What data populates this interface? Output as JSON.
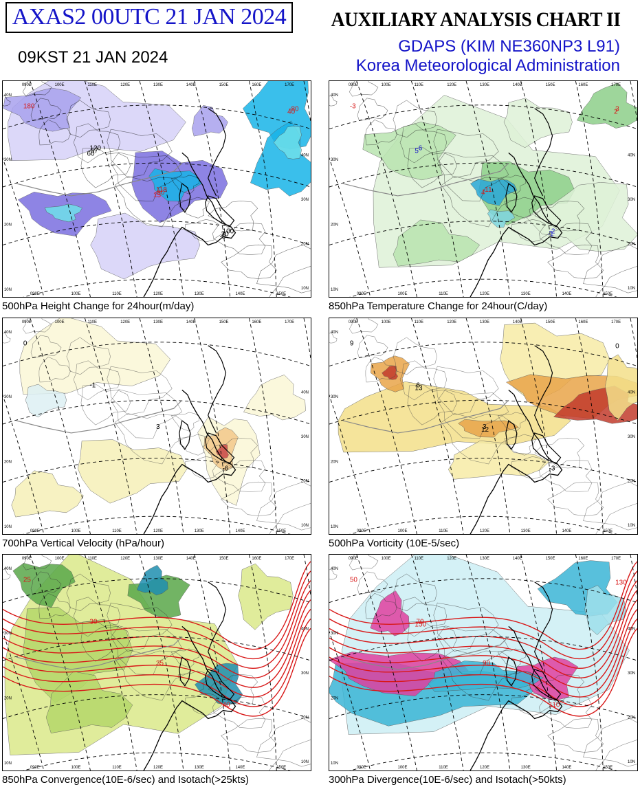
{
  "header": {
    "run_label": "AXAS2  00UTC 21 JAN 2024",
    "local_time": "09KST 21 JAN 2024",
    "chart_title": "AUXILIARY ANALYSIS CHART II",
    "model": "GDAPS (KIM NE360NP3 L91)",
    "agency": "Korea Meteorological Administration"
  },
  "grid_labels": {
    "lon_top": [
      "090E",
      "100E",
      "110E",
      "120E",
      "130E",
      "140E",
      "150E",
      "160E",
      "170E"
    ],
    "lon_bottom": [
      "090E",
      "100E",
      "110E",
      "120E",
      "130E",
      "140E",
      "150E"
    ],
    "lat_left": [
      "40N",
      "30N",
      "20N",
      "10N"
    ],
    "lat_right": [
      "40N",
      "30N",
      "20N",
      "10N"
    ]
  },
  "panels": [
    {
      "id": "p1",
      "caption": "500hPa Height Change for 24hour(m/day)",
      "palette": [
        "#7b6fe0",
        "#a9a2ee",
        "#d6d2f8",
        "#18b4e8",
        "#6fe0ea"
      ],
      "labels": [
        "180",
        "120",
        "118",
        "100",
        "-80",
        "-57",
        "-30",
        "20",
        "40",
        "60",
        "15",
        "-9"
      ]
    },
    {
      "id": "p2",
      "caption": "850hPa Temperature Change for 24hour(C/day)",
      "palette": [
        "#8ed08a",
        "#b9e4b0",
        "#dff2d8",
        "#2aa8d8",
        "#7fd6e0"
      ],
      "labels": [
        "-3",
        "-6",
        "-11",
        "-2",
        "3",
        "5",
        "4",
        "-1",
        "2"
      ]
    },
    {
      "id": "p3",
      "caption": "700hPa Vertical Velocity (hPa/hour)",
      "palette": [
        "#f6f0b8",
        "#fbf7d6",
        "#f3c98a",
        "#c94a4a",
        "#ddf0f4"
      ],
      "labels": [
        "0",
        "-1",
        "3",
        "-6"
      ]
    },
    {
      "id": "p4",
      "caption": "500hPa Vorticity (10E-5/sec)",
      "palette": [
        "#f4e08a",
        "#f7eca6",
        "#e9a54a",
        "#c23b2c",
        "#6e1010"
      ],
      "labels": [
        "9",
        "6",
        "3",
        "-3",
        "0",
        "13",
        "12"
      ]
    },
    {
      "id": "p5",
      "caption": "850hPa Convergence(10E-6/sec) and Isotach(>25kts)",
      "palette": [
        "#dbe98a",
        "#b5d86a",
        "#5aa84a",
        "#1f8fb0",
        "#e0303a"
      ],
      "labels": [
        "25",
        "30",
        "35",
        "40"
      ]
    },
    {
      "id": "p6",
      "caption": "300hPa Divergence(10E-6/sec) and Isotach(>50kts)",
      "palette": [
        "#9fe0ec",
        "#cdeff5",
        "#3bb6d6",
        "#e040a0",
        "#d02020"
      ],
      "labels": [
        "50",
        "70",
        "90",
        "110",
        "130",
        "150"
      ]
    }
  ]
}
